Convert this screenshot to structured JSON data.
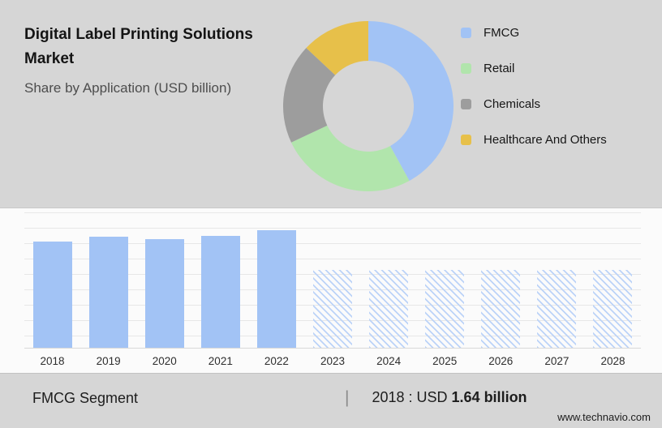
{
  "header": {
    "title": "Digital Label Printing Solutions Market",
    "subtitle": "Share by Application (USD billion)"
  },
  "chart_data": [
    {
      "type": "pie",
      "title": "Share by Application (USD billion)",
      "legend_position": "right",
      "donut": true,
      "segments": [
        {
          "label": "FMCG",
          "value": 42,
          "color": "#a2c3f5"
        },
        {
          "label": "Retail",
          "value": 26,
          "color": "#b1e5ac"
        },
        {
          "label": "Chemicals",
          "value": 19,
          "color": "#9d9d9d"
        },
        {
          "label": "Healthcare And Others",
          "value": 13,
          "color": "#e7c04a"
        }
      ]
    },
    {
      "type": "bar",
      "categories": [
        "2018",
        "2019",
        "2020",
        "2021",
        "2022",
        "2023",
        "2024",
        "2025",
        "2026",
        "2027",
        "2028"
      ],
      "values": [
        1.64,
        1.71,
        1.67,
        1.72,
        1.81,
        null,
        null,
        null,
        null,
        null,
        null
      ],
      "ylim": [
        0,
        2.1
      ],
      "grid": true,
      "bar_color": "#a2c3f5",
      "forecast_masked": true,
      "masked_display_value": 1.2,
      "note": "2023-2028 forecast bars shown hatched with values masked"
    }
  ],
  "footer": {
    "segment_label": "FMCG Segment",
    "divider": "|",
    "value_prefix": "2018 : USD ",
    "value_bold": "1.64 billion",
    "website": "www.technavio.com"
  }
}
